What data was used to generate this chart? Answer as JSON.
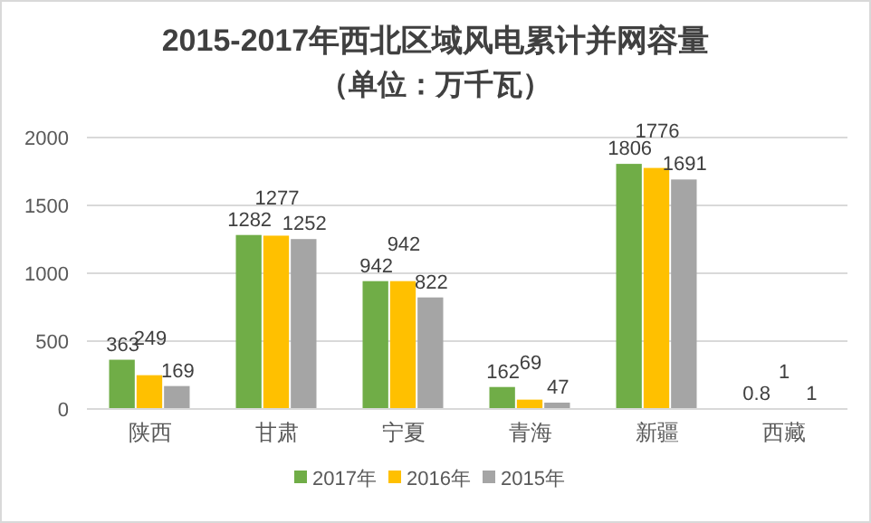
{
  "chart_data": {
    "type": "bar",
    "title": "2015-2017年西北区域风电累计并网容量",
    "subtitle": "（单位：万千瓦）",
    "categories": [
      "陕西",
      "甘肃",
      "宁夏",
      "青海",
      "新疆",
      "西藏"
    ],
    "series": [
      {
        "name": "2017年",
        "color": "#70ad47",
        "values": [
          363,
          1282,
          942,
          162,
          1806,
          0.8
        ]
      },
      {
        "name": "2016年",
        "color": "#ffc000",
        "values": [
          249,
          1277,
          942,
          69,
          1776,
          1
        ]
      },
      {
        "name": "2015年",
        "color": "#a5a5a5",
        "values": [
          169,
          1252,
          822,
          47,
          1691,
          1
        ]
      }
    ],
    "ylim": [
      0,
      2000
    ],
    "yticks": [
      0,
      500,
      1000,
      1500,
      2000
    ],
    "grid": "y",
    "legend": "bottom",
    "data_labels": true
  }
}
